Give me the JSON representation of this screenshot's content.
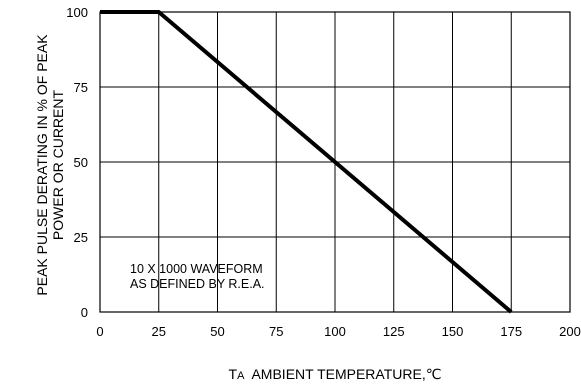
{
  "chart_data": {
    "type": "line",
    "title": "",
    "xlabel": {
      "prefix": "T",
      "sub": "A",
      "text": "AMBIENT TEMPERATURE,℃"
    },
    "ylabel": [
      "PEAK PULSE DERATING IN % OF PEAK",
      "POWER OR CURRENT"
    ],
    "xlim": [
      0,
      200
    ],
    "ylim": [
      0,
      100
    ],
    "x_ticks": [
      0,
      25,
      50,
      75,
      100,
      125,
      150,
      175,
      200
    ],
    "y_ticks": [
      0,
      25,
      50,
      75,
      100
    ],
    "grid": true,
    "annotation": [
      "10 X 1000 WAVEFORM",
      "AS DEFINED BY R.E.A."
    ],
    "series": [
      {
        "x": [
          0,
          25,
          175
        ],
        "y": [
          100,
          100,
          0
        ]
      }
    ]
  }
}
